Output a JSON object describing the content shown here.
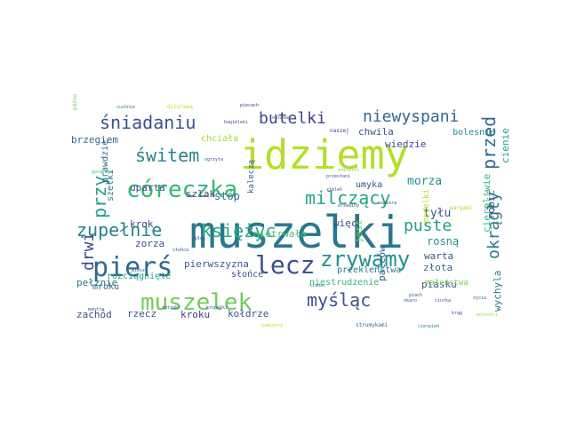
{
  "cloud": {
    "words": [
      {
        "text": "muszelki",
        "color": "#2a788e"
      },
      {
        "text": "idziemy",
        "color": "#b5de2b"
      },
      {
        "text": "córeczka",
        "color": "#35b779"
      },
      {
        "text": "muszelek",
        "color": "#6ece58"
      },
      {
        "text": "pierś",
        "color": "#31688e"
      },
      {
        "text": "lecz",
        "color": "#3b528b"
      },
      {
        "text": "zrywamy",
        "color": "#21918c"
      },
      {
        "text": "myśląc",
        "color": "#3b528b"
      },
      {
        "text": "świtem",
        "color": "#26828e"
      },
      {
        "text": "milczący",
        "color": "#22a884"
      },
      {
        "text": "śniadaniu",
        "color": "#3b528b"
      },
      {
        "text": "butelki",
        "color": "#414487"
      },
      {
        "text": "niewyspani",
        "color": "#31688e"
      },
      {
        "text": "zupełnie",
        "color": "#26828e"
      },
      {
        "text": "księżyc",
        "color": "#27ad81"
      },
      {
        "text": "przy",
        "color": "#1fa088"
      },
      {
        "text": "przed",
        "color": "#31688e"
      },
      {
        "text": "puste",
        "color": "#1fa088"
      },
      {
        "text": "okrągły",
        "color": "#2a788e"
      },
      {
        "text": "drwi",
        "color": "#3e4989"
      },
      {
        "text": "brzegiem",
        "color": "#31688e"
      },
      {
        "text": "chciała",
        "color": "#a0da39"
      },
      {
        "text": "chwila",
        "color": "#3b528b"
      },
      {
        "text": "wiedzie",
        "color": "#3e4989"
      },
      {
        "text": "bolesnie",
        "color": "#21918c"
      },
      {
        "text": "morza",
        "color": "#21918c"
      },
      {
        "text": "umyka",
        "color": "#3b528b"
      },
      {
        "text": "prawdzie",
        "color": "#31688e"
      },
      {
        "text": "szelki",
        "color": "#2a788e"
      },
      {
        "text": "uparta",
        "color": "#3e4989"
      },
      {
        "text": "szlak",
        "color": "#433e85"
      },
      {
        "text": "stóp",
        "color": "#31688e"
      },
      {
        "text": "tyłu",
        "color": "#3b528b"
      },
      {
        "text": "krok",
        "color": "#3e4989"
      },
      {
        "text": "pierwszyzna",
        "color": "#38588c"
      },
      {
        "text": "więc",
        "color": "#3b528b"
      },
      {
        "text": "rosną",
        "color": "#21918c"
      },
      {
        "text": "nietrwała",
        "color": "#4ac16d"
      },
      {
        "text": "jest",
        "color": "#6ece58"
      },
      {
        "text": "cierpliwie",
        "color": "#35b779"
      },
      {
        "text": "robić",
        "color": "#3b528b"
      },
      {
        "text": "cienie",
        "color": "#1fa088"
      },
      {
        "text": "modelki",
        "color": "#bddf26"
      },
      {
        "text": "zorza",
        "color": "#3b528b"
      },
      {
        "text": "warta",
        "color": "#3b528b"
      },
      {
        "text": "złota",
        "color": "#31688e"
      },
      {
        "text": "pełznie",
        "color": "#2a788e"
      },
      {
        "text": "słońce",
        "color": "#3b528b"
      },
      {
        "text": "rozciągnięte",
        "color": "#1fa088"
      },
      {
        "text": "mroku",
        "color": "#31688e"
      },
      {
        "text": "niestrudzenie",
        "color": "#35b779"
      },
      {
        "text": "palców",
        "color": "#31688e"
      },
      {
        "text": "przekleństwa",
        "color": "#2a788e"
      },
      {
        "text": "piasku",
        "color": "#3b528b"
      },
      {
        "text": "małeństwa",
        "color": "#7ad151"
      },
      {
        "text": "wychyla",
        "color": "#2a788e"
      },
      {
        "text": "zachód",
        "color": "#3b528b"
      },
      {
        "text": "rzecz",
        "color": "#3b528b"
      },
      {
        "text": "kroku",
        "color": "#443983"
      },
      {
        "text": "kołdrze",
        "color": "#3b528b"
      },
      {
        "text": "kaleczą",
        "color": "#31688e"
      },
      {
        "text": "bagieleki",
        "color": "#3b528b"
      },
      {
        "text": "naszej",
        "color": "#443983"
      },
      {
        "text": "zdzielki",
        "color": "#7ad151"
      },
      {
        "text": "przestani",
        "color": "#3b528b"
      },
      {
        "text": "aspiera",
        "color": "#3e4989"
      },
      {
        "text": "wargami",
        "color": "#a0da39"
      },
      {
        "text": "strumykami",
        "color": "#31688e"
      },
      {
        "text": "cierpień",
        "color": "#2a788e"
      },
      {
        "text": "krąg",
        "color": "#3b528b"
      },
      {
        "text": "wolności",
        "color": "#a0da39"
      },
      {
        "text": "życia",
        "color": "#31688e"
      },
      {
        "text": "ciurka",
        "color": "#3b528b"
      },
      {
        "text": "cuchnie",
        "color": "#2a788e"
      },
      {
        "text": "dziurawą",
        "color": "#c2df23"
      },
      {
        "text": "piecach",
        "color": "#443983"
      },
      {
        "text": "późno",
        "color": "#6ece58"
      },
      {
        "text": "oglądać",
        "color": "#3b528b"
      },
      {
        "text": "siadać",
        "color": "#2a788e"
      },
      {
        "text": "kropełki",
        "color": "#3b528b"
      },
      {
        "text": "piach",
        "color": "#3b528b"
      },
      {
        "text": "skaro",
        "color": "#3b528b"
      },
      {
        "text": "antrakt",
        "color": "#3b528b"
      },
      {
        "text": "mantra",
        "color": "#3b528b"
      },
      {
        "text": "pyłek",
        "color": "#3b528b"
      },
      {
        "text": "gorączka",
        "color": "#35b779"
      },
      {
        "text": "pomidory",
        "color": "#b5de2b"
      },
      {
        "text": "słońca",
        "color": "#3b528b"
      },
      {
        "text": "ogrzyta",
        "color": "#3b528b"
      },
      {
        "text": "zieleń",
        "color": "#3b528b"
      },
      {
        "text": "drzewiny",
        "color": "#3b528b"
      },
      {
        "text": "wiesz",
        "color": "#3b528b"
      }
    ]
  }
}
